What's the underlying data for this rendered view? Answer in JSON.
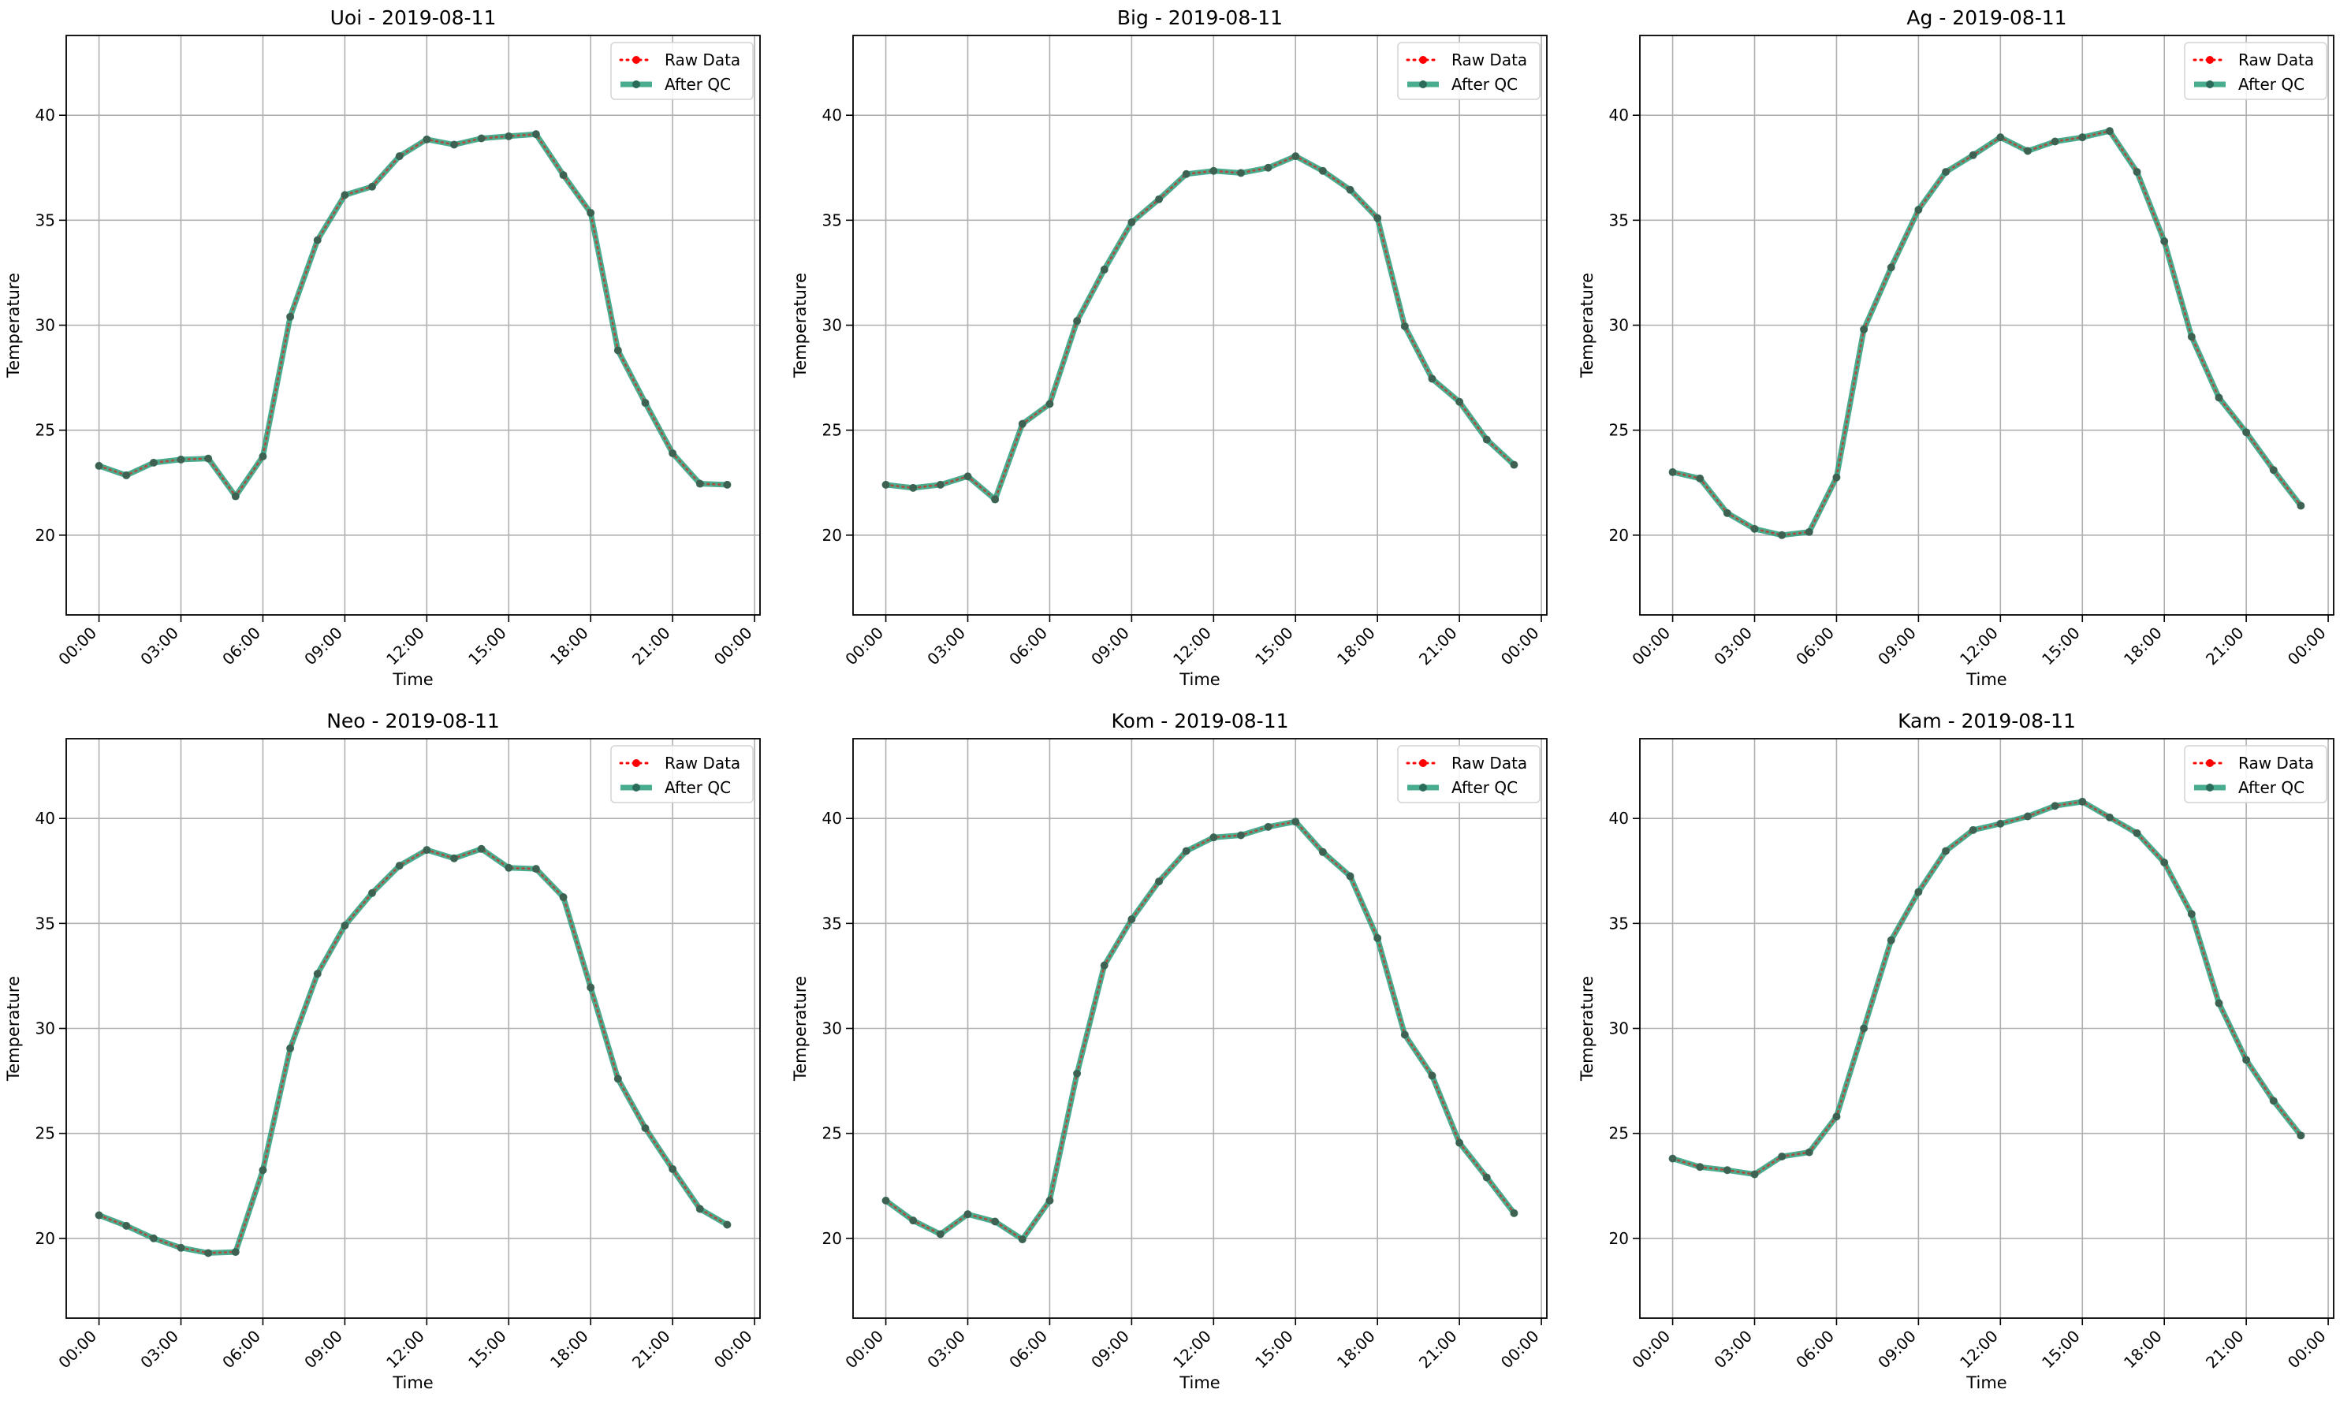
{
  "chart_data": [
    {
      "type": "line",
      "title": "Uoi - 2019-08-11",
      "xlabel": "Time",
      "ylabel": "Temperature",
      "xticks": [
        "00:00",
        "03:00",
        "06:00",
        "09:00",
        "12:00",
        "15:00",
        "18:00",
        "21:00",
        "00:00"
      ],
      "yticks": [
        20,
        25,
        30,
        35,
        40
      ],
      "xlim": [
        -1.2,
        24.2
      ],
      "ylim": [
        16.2,
        43.8
      ],
      "grid": true,
      "legend_position": "top-right",
      "x": [
        0,
        1,
        2,
        3,
        4,
        5,
        6,
        7,
        8,
        9,
        10,
        11,
        12,
        13,
        14,
        15,
        16,
        17,
        18,
        19,
        20,
        21,
        22,
        23
      ],
      "series": [
        {
          "name": "Raw Data",
          "color": "#ff0000",
          "style": "dotted",
          "values": [
            23.3,
            22.85,
            23.45,
            23.6,
            23.65,
            21.85,
            23.75,
            30.4,
            34.05,
            36.2,
            36.6,
            38.05,
            38.85,
            38.6,
            38.9,
            39.0,
            39.1,
            37.15,
            35.35,
            28.8,
            26.3,
            23.9,
            22.45,
            22.4
          ]
        },
        {
          "name": "After QC",
          "color": "#2a9d7a",
          "style": "solid",
          "values": [
            23.3,
            22.85,
            23.45,
            23.6,
            23.65,
            21.85,
            23.75,
            30.4,
            34.05,
            36.2,
            36.6,
            38.05,
            38.85,
            38.6,
            38.9,
            39.0,
            39.1,
            37.15,
            35.35,
            28.8,
            26.3,
            23.9,
            22.45,
            22.4
          ]
        }
      ]
    },
    {
      "type": "line",
      "title": "Big - 2019-08-11",
      "xlabel": "Time",
      "ylabel": "Temperature",
      "xticks": [
        "00:00",
        "03:00",
        "06:00",
        "09:00",
        "12:00",
        "15:00",
        "18:00",
        "21:00",
        "00:00"
      ],
      "yticks": [
        20,
        25,
        30,
        35,
        40
      ],
      "xlim": [
        -1.2,
        24.2
      ],
      "ylim": [
        16.2,
        43.8
      ],
      "grid": true,
      "legend_position": "top-right",
      "x": [
        0,
        1,
        2,
        3,
        4,
        5,
        6,
        7,
        8,
        9,
        10,
        11,
        12,
        13,
        14,
        15,
        16,
        17,
        18,
        19,
        20,
        21,
        22,
        23
      ],
      "series": [
        {
          "name": "Raw Data",
          "color": "#ff0000",
          "style": "dotted",
          "values": [
            22.4,
            22.25,
            22.4,
            22.8,
            21.7,
            25.3,
            26.25,
            30.2,
            32.65,
            34.9,
            36.0,
            37.2,
            37.35,
            37.25,
            37.5,
            38.05,
            37.35,
            36.45,
            35.1,
            29.95,
            27.45,
            26.35,
            24.55,
            23.35
          ]
        },
        {
          "name": "After QC",
          "color": "#2a9d7a",
          "style": "solid",
          "values": [
            22.4,
            22.25,
            22.4,
            22.8,
            21.7,
            25.3,
            26.25,
            30.2,
            32.65,
            34.9,
            36.0,
            37.2,
            37.35,
            37.25,
            37.5,
            38.05,
            37.35,
            36.45,
            35.1,
            29.95,
            27.45,
            26.35,
            24.55,
            23.35
          ]
        }
      ]
    },
    {
      "type": "line",
      "title": "Ag - 2019-08-11",
      "xlabel": "Time",
      "ylabel": "Temperature",
      "xticks": [
        "00:00",
        "03:00",
        "06:00",
        "09:00",
        "12:00",
        "15:00",
        "18:00",
        "21:00",
        "00:00"
      ],
      "yticks": [
        20,
        25,
        30,
        35,
        40
      ],
      "xlim": [
        -1.2,
        24.2
      ],
      "ylim": [
        16.2,
        43.8
      ],
      "grid": true,
      "legend_position": "top-right",
      "x": [
        0,
        1,
        2,
        3,
        4,
        5,
        6,
        7,
        8,
        9,
        10,
        11,
        12,
        13,
        14,
        15,
        16,
        17,
        18,
        19,
        20,
        21,
        22,
        23
      ],
      "series": [
        {
          "name": "Raw Data",
          "color": "#ff0000",
          "style": "dotted",
          "values": [
            23.0,
            22.7,
            21.05,
            20.3,
            20.0,
            20.15,
            22.75,
            29.8,
            32.75,
            35.5,
            37.3,
            38.1,
            38.95,
            38.3,
            38.75,
            38.95,
            39.25,
            37.3,
            34.0,
            29.45,
            26.55,
            24.9,
            23.1,
            21.4
          ]
        },
        {
          "name": "After QC",
          "color": "#2a9d7a",
          "style": "solid",
          "values": [
            23.0,
            22.7,
            21.05,
            20.3,
            20.0,
            20.15,
            22.75,
            29.8,
            32.75,
            35.5,
            37.3,
            38.1,
            38.95,
            38.3,
            38.75,
            38.95,
            39.25,
            37.3,
            34.0,
            29.45,
            26.55,
            24.9,
            23.1,
            21.4
          ]
        }
      ]
    },
    {
      "type": "line",
      "title": "Neo - 2019-08-11",
      "xlabel": "Time",
      "ylabel": "Temperature",
      "xticks": [
        "00:00",
        "03:00",
        "06:00",
        "09:00",
        "12:00",
        "15:00",
        "18:00",
        "21:00",
        "00:00"
      ],
      "yticks": [
        20,
        25,
        30,
        35,
        40
      ],
      "xlim": [
        -1.2,
        24.2
      ],
      "ylim": [
        16.2,
        43.8
      ],
      "grid": true,
      "legend_position": "top-right",
      "x": [
        0,
        1,
        2,
        3,
        4,
        5,
        6,
        7,
        8,
        9,
        10,
        11,
        12,
        13,
        14,
        15,
        16,
        17,
        18,
        19,
        20,
        21,
        22,
        23
      ],
      "series": [
        {
          "name": "Raw Data",
          "color": "#ff0000",
          "style": "dotted",
          "values": [
            21.1,
            20.6,
            20.0,
            19.55,
            19.3,
            19.35,
            23.25,
            29.05,
            32.6,
            34.9,
            36.45,
            37.75,
            38.5,
            38.1,
            38.55,
            37.65,
            37.6,
            36.25,
            31.95,
            27.6,
            25.25,
            23.3,
            21.4,
            20.65
          ]
        },
        {
          "name": "After QC",
          "color": "#2a9d7a",
          "style": "solid",
          "values": [
            21.1,
            20.6,
            20.0,
            19.55,
            19.3,
            19.35,
            23.25,
            29.05,
            32.6,
            34.9,
            36.45,
            37.75,
            38.5,
            38.1,
            38.55,
            37.65,
            37.6,
            36.25,
            31.95,
            27.6,
            25.25,
            23.3,
            21.4,
            20.65
          ]
        }
      ]
    },
    {
      "type": "line",
      "title": "Kom - 2019-08-11",
      "xlabel": "Time",
      "ylabel": "Temperature",
      "xticks": [
        "00:00",
        "03:00",
        "06:00",
        "09:00",
        "12:00",
        "15:00",
        "18:00",
        "21:00",
        "00:00"
      ],
      "yticks": [
        20,
        25,
        30,
        35,
        40
      ],
      "xlim": [
        -1.2,
        24.2
      ],
      "ylim": [
        16.2,
        43.8
      ],
      "grid": true,
      "legend_position": "top-right",
      "x": [
        0,
        1,
        2,
        3,
        4,
        5,
        6,
        7,
        8,
        9,
        10,
        11,
        12,
        13,
        14,
        15,
        16,
        17,
        18,
        19,
        20,
        21,
        22,
        23
      ],
      "series": [
        {
          "name": "Raw Data",
          "color": "#ff0000",
          "style": "dotted",
          "values": [
            21.8,
            20.85,
            20.2,
            21.15,
            20.8,
            19.95,
            21.8,
            27.85,
            33.0,
            35.2,
            37.0,
            38.45,
            39.1,
            39.2,
            39.6,
            39.85,
            38.4,
            37.25,
            34.3,
            29.7,
            27.75,
            24.55,
            22.9,
            21.2
          ]
        },
        {
          "name": "After QC",
          "color": "#2a9d7a",
          "style": "solid",
          "values": [
            21.8,
            20.85,
            20.2,
            21.15,
            20.8,
            19.95,
            21.8,
            27.85,
            33.0,
            35.2,
            37.0,
            38.45,
            39.1,
            39.2,
            39.6,
            39.85,
            38.4,
            37.25,
            34.3,
            29.7,
            27.75,
            24.55,
            22.9,
            21.2
          ]
        }
      ]
    },
    {
      "type": "line",
      "title": "Kam - 2019-08-11",
      "xlabel": "Time",
      "ylabel": "Temperature",
      "xticks": [
        "00:00",
        "03:00",
        "06:00",
        "09:00",
        "12:00",
        "15:00",
        "18:00",
        "21:00",
        "00:00"
      ],
      "yticks": [
        20,
        25,
        30,
        35,
        40
      ],
      "xlim": [
        -1.2,
        24.2
      ],
      "ylim": [
        16.2,
        43.8
      ],
      "grid": true,
      "legend_position": "top-right",
      "x": [
        0,
        1,
        2,
        3,
        4,
        5,
        6,
        7,
        8,
        9,
        10,
        11,
        12,
        13,
        14,
        15,
        16,
        17,
        18,
        19,
        20,
        21,
        22,
        23
      ],
      "series": [
        {
          "name": "Raw Data",
          "color": "#ff0000",
          "style": "dotted",
          "values": [
            23.8,
            23.4,
            23.25,
            23.05,
            23.9,
            24.1,
            25.8,
            30.0,
            34.2,
            36.5,
            38.45,
            39.45,
            39.75,
            40.1,
            40.6,
            40.8,
            40.05,
            39.3,
            37.9,
            35.45,
            31.2,
            28.5,
            26.55,
            24.9
          ]
        },
        {
          "name": "After QC",
          "color": "#2a9d7a",
          "style": "solid",
          "values": [
            23.8,
            23.4,
            23.25,
            23.05,
            23.9,
            24.1,
            25.8,
            30.0,
            34.2,
            36.5,
            38.45,
            39.45,
            39.75,
            40.1,
            40.6,
            40.8,
            40.05,
            39.3,
            37.9,
            35.45,
            31.2,
            28.5,
            26.55,
            24.9
          ]
        }
      ]
    }
  ]
}
